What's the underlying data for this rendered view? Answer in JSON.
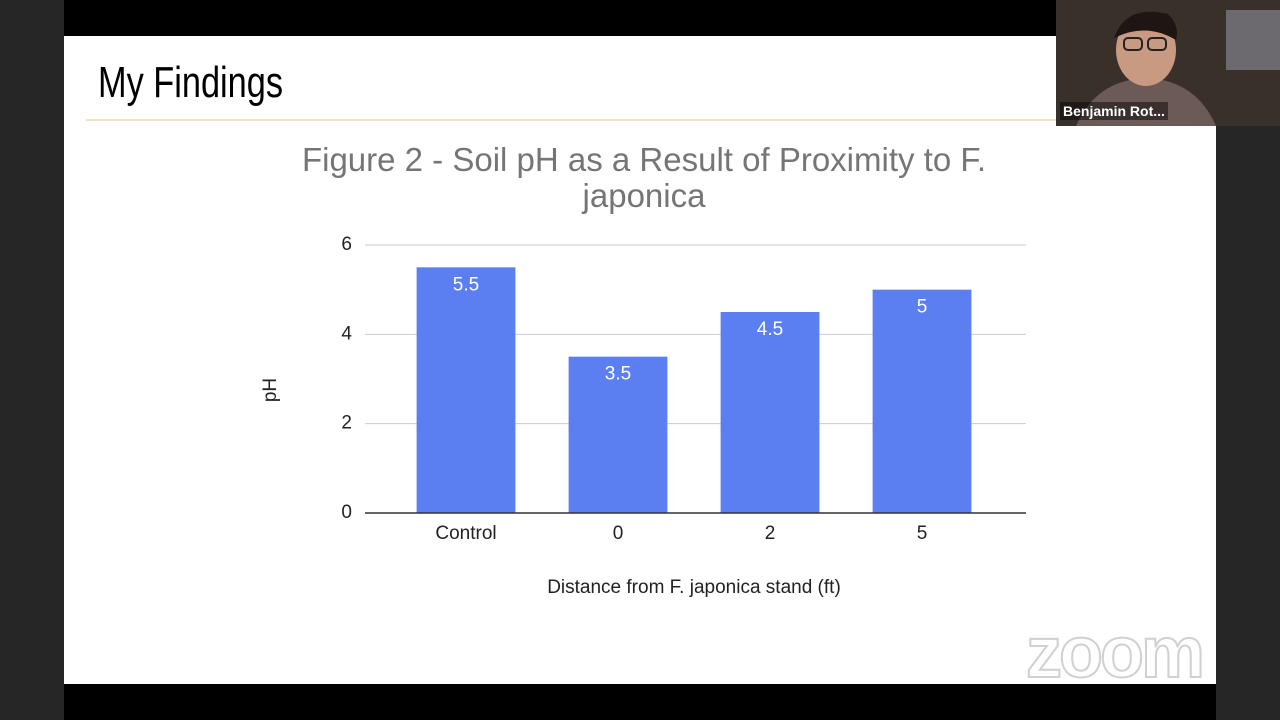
{
  "slide_title": "My Findings",
  "participant_name": "Benjamin Rot...",
  "watermark": "zoom",
  "chart_data": {
    "type": "bar",
    "title": "Figure 2 - Soil pH as a Result of Proximity to F. japonica",
    "x_label": "Distance from F. japonica stand (ft)",
    "y_label": "pH",
    "categories": [
      "Control",
      "0",
      "2",
      "5"
    ],
    "values": [
      5.5,
      3.5,
      4.5,
      5
    ],
    "color": "#5b7ff0",
    "ylim": [
      0,
      6
    ],
    "yticks": [
      0,
      2,
      4,
      6
    ],
    "grid": true
  }
}
